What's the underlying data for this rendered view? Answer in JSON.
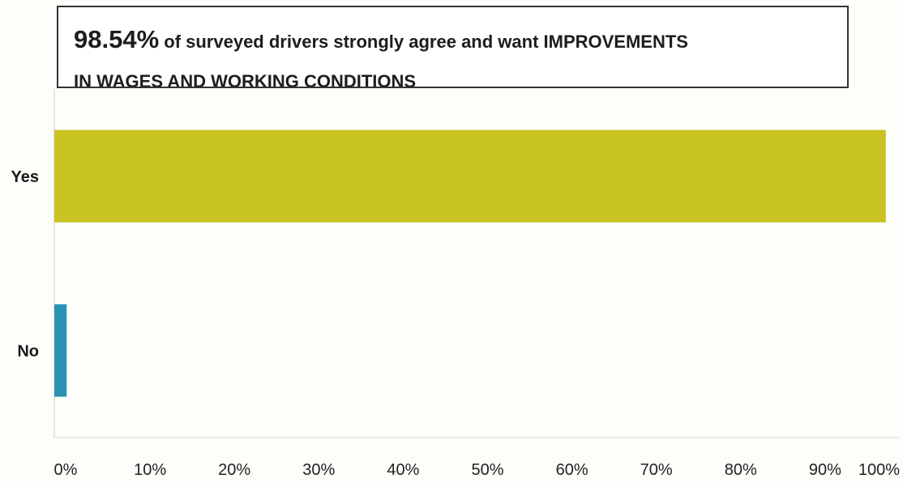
{
  "chart_data": {
    "type": "bar",
    "orientation": "horizontal",
    "title": {
      "highlight": "98.54%",
      "line1_rest": " of surveyed drivers strongly agree and want IMPROVEMENTS",
      "line2": "IN WAGES AND WORKING CONDITIONS"
    },
    "categories": [
      "Yes",
      "No"
    ],
    "values": [
      98.54,
      1.46
    ],
    "colors": [
      "#c9c321",
      "#2a93b4"
    ],
    "xlim": [
      0,
      100
    ],
    "x_ticks": [
      "0%",
      "10%",
      "20%",
      "30%",
      "40%",
      "50%",
      "60%",
      "70%",
      "80%",
      "90%",
      "100%"
    ],
    "grid": false,
    "legend": "none"
  }
}
